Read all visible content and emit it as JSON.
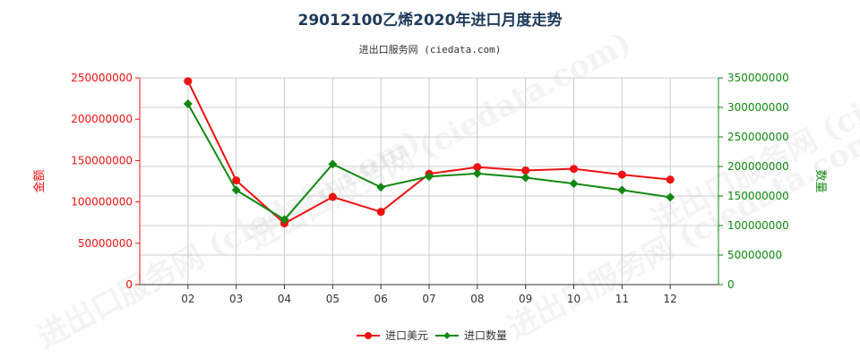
{
  "title": "29012100乙烯2020年进口月度走势",
  "subtitle": "进出口服务网 (ciedata.com)",
  "watermark": "进出口服务网 (ciedata.com)",
  "colors": {
    "left": "#ee1111",
    "right": "#118811",
    "grid": "#cccccc",
    "axis": "#333333"
  },
  "chart_data": {
    "type": "line",
    "title": "29012100乙烯2020年进口月度走势",
    "categories": [
      "02",
      "03",
      "04",
      "05",
      "06",
      "07",
      "08",
      "09",
      "10",
      "11",
      "12"
    ],
    "y_left": {
      "label": "金额",
      "lim": [
        0,
        250000000
      ],
      "ticks": [
        "0",
        "50000000",
        "100000000",
        "150000000",
        "200000000",
        "250000000"
      ]
    },
    "y_right": {
      "label": "数量",
      "lim": [
        0,
        350000000
      ],
      "ticks": [
        "0",
        "50000000",
        "100000000",
        "150000000",
        "200000000",
        "250000000",
        "300000000",
        "350000000"
      ]
    },
    "series": [
      {
        "name": "进口美元",
        "axis": "left",
        "color": "#ee1111",
        "marker": "circle",
        "values": [
          246000000,
          126000000,
          74000000,
          106000000,
          88000000,
          134000000,
          142000000,
          138000000,
          140000000,
          133000000,
          127000000
        ]
      },
      {
        "name": "进口数量",
        "axis": "right",
        "color": "#118811",
        "marker": "diamond",
        "values": [
          306000000,
          160000000,
          110000000,
          204000000,
          165000000,
          183000000,
          188000000,
          181000000,
          171000000,
          160000000,
          148000000
        ]
      }
    ],
    "grid": true,
    "legend": "bottom-center"
  }
}
